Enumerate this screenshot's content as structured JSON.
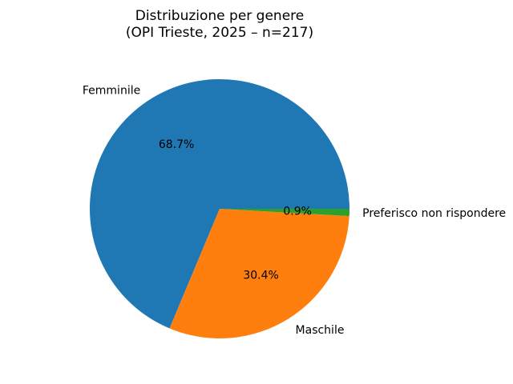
{
  "page": {
    "background": "#ffffff"
  },
  "chart_data": {
    "type": "pie",
    "title": "Distribuzione per genere\n(OPI Trieste, 2025 – n=217)",
    "title_lines": [
      "Distribuzione per genere",
      "(OPI Trieste, 2025 – n=217)"
    ],
    "labels": [
      "Femminile",
      "Maschile",
      "Preferisco non rispondere"
    ],
    "values": [
      68.7,
      30.4,
      0.9
    ],
    "value_labels": [
      "68.7%",
      "30.4%",
      "0.9%"
    ],
    "unit": "percent",
    "colors": [
      "#1f77b4",
      "#ff7f0e",
      "#2ca02c"
    ],
    "text_color": "#000000",
    "start_angle_deg": 0,
    "direction": "counterclockwise",
    "label_distance": 1.1,
    "pct_distance": 0.6,
    "legend": "none",
    "grid": "off"
  }
}
